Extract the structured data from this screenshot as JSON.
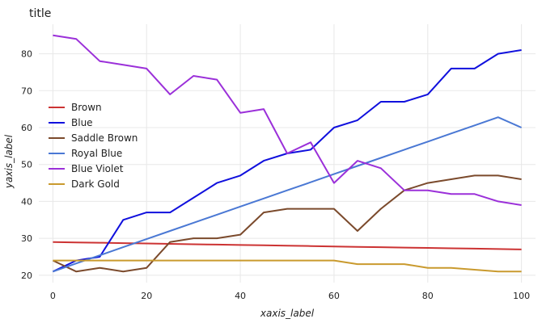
{
  "chart_data": {
    "type": "line",
    "title": "title",
    "xlabel": "xaxis_label",
    "ylabel": "yaxis_label",
    "xlim": [
      -3,
      103
    ],
    "ylim": [
      18,
      88
    ],
    "xticks": [
      0,
      20,
      40,
      60,
      80,
      100
    ],
    "yticks": [
      20,
      30,
      40,
      50,
      60,
      70,
      80
    ],
    "grid": true,
    "legend_position": "left",
    "x": [
      0,
      5,
      10,
      15,
      20,
      25,
      30,
      35,
      40,
      45,
      50,
      55,
      60,
      65,
      70,
      75,
      80,
      85,
      90,
      95,
      100
    ],
    "series": [
      {
        "name": "Brown",
        "color": "#cc3333",
        "values": [
          29,
          28.9,
          28.8,
          28.7,
          28.6,
          28.5,
          28.4,
          28.3,
          28.2,
          28.1,
          28,
          27.9,
          27.8,
          27.7,
          27.6,
          27.5,
          27.4,
          27.3,
          27.2,
          27.1,
          27
        ]
      },
      {
        "name": "Blue",
        "color": "#1010dd",
        "values": [
          21,
          24,
          25,
          35,
          37,
          37,
          41,
          45,
          47,
          51,
          53,
          54,
          60,
          62,
          67,
          67,
          69,
          76,
          76,
          80,
          81
        ]
      },
      {
        "name": "Saddle Brown",
        "color": "#7b4a2c",
        "values": [
          24,
          21,
          22,
          21,
          22,
          29,
          30,
          30,
          31,
          37,
          38,
          38,
          38,
          32,
          38,
          43,
          45,
          46,
          47,
          47,
          46
        ]
      },
      {
        "name": "Royal Blue",
        "color": "#4a78d4",
        "values": [
          21,
          23.2,
          25.4,
          27.6,
          29.8,
          32,
          34.2,
          36.4,
          38.6,
          40.8,
          43,
          45.2,
          47.4,
          49.6,
          51.8,
          54,
          56.2,
          58.4,
          60.6,
          62.8,
          60
        ]
      },
      {
        "name": "Blue Violet",
        "color": "#9b30d9",
        "values": [
          85,
          84,
          78,
          77,
          76,
          69,
          74,
          73,
          64,
          65,
          53,
          56,
          45,
          51,
          49,
          43,
          43,
          42,
          42,
          40,
          39
        ]
      },
      {
        "name": "Dark Gold",
        "color": "#c99a2e",
        "values": [
          24,
          24,
          24,
          24,
          24,
          24,
          24,
          24,
          24,
          24,
          24,
          24,
          24,
          23,
          23,
          23,
          22,
          22,
          21.5,
          21,
          21
        ]
      }
    ]
  }
}
